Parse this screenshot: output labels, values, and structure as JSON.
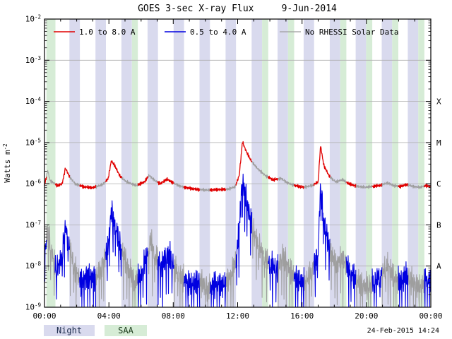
{
  "chart_data": {
    "type": "line",
    "title": "GOES 3-sec X-ray Flux     9-Jun-2014",
    "ylog": true,
    "ylim": [
      1e-09,
      0.01
    ],
    "xlim_hours": [
      0,
      24
    ],
    "x_tick_hours": [
      0,
      4,
      8,
      12,
      16,
      20,
      24
    ],
    "x_tick_labels": [
      "00:00",
      "04:00",
      "08:00",
      "12:00",
      "16:00",
      "20:00",
      "00:00"
    ],
    "y_tick_exponents": [
      -2,
      -3,
      -4,
      -5,
      -6,
      -7,
      -8,
      -9
    ],
    "goes_class_labels": [
      {
        "label": "X",
        "flux": 0.0001
      },
      {
        "label": "M",
        "flux": 1e-05
      },
      {
        "label": "C",
        "flux": 1e-06
      },
      {
        "label": "B",
        "flux": 1e-07
      },
      {
        "label": "A",
        "flux": 1e-08
      }
    ],
    "series": [
      {
        "name": "1.0 to 8.0 A",
        "color": "#e00000",
        "noise_decades": 0.05,
        "drop_spikes": false,
        "keypoints": [
          [
            0.0,
            9e-07
          ],
          [
            0.2,
            2.1e-06
          ],
          [
            0.35,
            1.2e-06
          ],
          [
            0.8,
            9e-07
          ],
          [
            1.1,
            1e-06
          ],
          [
            1.3,
            2.4e-06
          ],
          [
            1.55,
            1.5e-06
          ],
          [
            1.9,
            1e-06
          ],
          [
            2.4,
            8.5e-07
          ],
          [
            3.0,
            8e-07
          ],
          [
            3.6,
            9.5e-07
          ],
          [
            3.95,
            1.3e-06
          ],
          [
            4.15,
            3.6e-06
          ],
          [
            4.35,
            2.8e-06
          ],
          [
            4.7,
            1.5e-06
          ],
          [
            5.1,
            1.1e-06
          ],
          [
            5.7,
            9e-07
          ],
          [
            6.2,
            1.1e-06
          ],
          [
            6.5,
            1.6e-06
          ],
          [
            6.85,
            1.2e-06
          ],
          [
            7.2,
            1e-06
          ],
          [
            7.6,
            1.3e-06
          ],
          [
            8.0,
            1.05e-06
          ],
          [
            8.5,
            8.5e-07
          ],
          [
            9.0,
            7.8e-07
          ],
          [
            9.6,
            7.2e-07
          ],
          [
            10.2,
            7e-07
          ],
          [
            10.8,
            7.2e-07
          ],
          [
            11.4,
            7.3e-07
          ],
          [
            11.85,
            8.5e-07
          ],
          [
            12.1,
            1.6e-06
          ],
          [
            12.3,
            1.05e-05
          ],
          [
            12.5,
            6.5e-06
          ],
          [
            12.8,
            3.8e-06
          ],
          [
            13.2,
            2.4e-06
          ],
          [
            13.7,
            1.6e-06
          ],
          [
            14.2,
            1.25e-06
          ],
          [
            14.7,
            1.35e-06
          ],
          [
            15.1,
            1.05e-06
          ],
          [
            15.6,
            9e-07
          ],
          [
            16.1,
            8.2e-07
          ],
          [
            16.6,
            9e-07
          ],
          [
            17.0,
            1.1e-06
          ],
          [
            17.15,
            8.5e-06
          ],
          [
            17.35,
            2.8e-06
          ],
          [
            17.7,
            1.5e-06
          ],
          [
            18.1,
            1.1e-06
          ],
          [
            18.5,
            1.25e-06
          ],
          [
            18.9,
            1e-06
          ],
          [
            19.4,
            8.6e-07
          ],
          [
            19.9,
            8.2e-07
          ],
          [
            20.4,
            8.6e-07
          ],
          [
            20.9,
            9.2e-07
          ],
          [
            21.3,
            1.05e-06
          ],
          [
            21.7,
            9e-07
          ],
          [
            22.1,
            8.6e-07
          ],
          [
            22.5,
            9.6e-07
          ],
          [
            22.9,
            8.6e-07
          ],
          [
            23.3,
            8.2e-07
          ],
          [
            23.7,
            9e-07
          ],
          [
            24.0,
            8.6e-07
          ]
        ]
      },
      {
        "name": "0.5 to 4.0 A",
        "color": "#0000e0",
        "noise_decades": 0.4,
        "drop_spikes": true,
        "keypoints": [
          [
            0.0,
            2e-08
          ],
          [
            0.2,
            7e-08
          ],
          [
            0.45,
            2e-08
          ],
          [
            0.75,
            8e-09
          ],
          [
            1.05,
            1.5e-08
          ],
          [
            1.3,
            9e-08
          ],
          [
            1.55,
            3e-08
          ],
          [
            1.9,
            8e-09
          ],
          [
            2.3,
            4e-09
          ],
          [
            2.7,
            6e-09
          ],
          [
            3.1,
            5e-09
          ],
          [
            3.5,
            8e-09
          ],
          [
            3.95,
            3e-08
          ],
          [
            4.15,
            2.2e-07
          ],
          [
            4.4,
            9e-08
          ],
          [
            4.8,
            2.5e-08
          ],
          [
            5.2,
            9e-09
          ],
          [
            5.6,
            4e-09
          ],
          [
            6.0,
            6e-09
          ],
          [
            6.35,
            1.8e-08
          ],
          [
            6.6,
            4e-08
          ],
          [
            6.9,
            1.6e-08
          ],
          [
            7.3,
            1e-08
          ],
          [
            7.7,
            2e-08
          ],
          [
            8.1,
            9e-09
          ],
          [
            8.6,
            5e-09
          ],
          [
            9.1,
            3.5e-09
          ],
          [
            9.6,
            4.5e-09
          ],
          [
            10.1,
            3e-09
          ],
          [
            10.6,
            4e-09
          ],
          [
            11.1,
            3.5e-09
          ],
          [
            11.6,
            6e-09
          ],
          [
            11.9,
            1.6e-08
          ],
          [
            12.1,
            9e-08
          ],
          [
            12.3,
            1.3e-06
          ],
          [
            12.5,
            4.5e-07
          ],
          [
            12.8,
            1.4e-07
          ],
          [
            13.1,
            5e-08
          ],
          [
            13.5,
            2.2e-08
          ],
          [
            14.0,
            1.1e-08
          ],
          [
            14.5,
            8e-09
          ],
          [
            14.8,
            1.8e-08
          ],
          [
            15.2,
            8e-09
          ],
          [
            15.7,
            4.5e-09
          ],
          [
            16.2,
            4e-09
          ],
          [
            16.6,
            8e-09
          ],
          [
            17.0,
            2.2e-08
          ],
          [
            17.15,
            1e-06
          ],
          [
            17.35,
            1.3e-07
          ],
          [
            17.7,
            3e-08
          ],
          [
            18.1,
            1.1e-08
          ],
          [
            18.5,
            1.6e-08
          ],
          [
            18.9,
            8e-09
          ],
          [
            19.4,
            4.5e-09
          ],
          [
            19.9,
            3e-09
          ],
          [
            20.4,
            4e-09
          ],
          [
            20.9,
            6e-09
          ],
          [
            21.3,
            1.1e-08
          ],
          [
            21.7,
            5e-09
          ],
          [
            22.1,
            4e-09
          ],
          [
            22.5,
            6e-09
          ],
          [
            22.9,
            4e-09
          ],
          [
            23.3,
            3e-09
          ],
          [
            23.7,
            5e-09
          ],
          [
            24.0,
            4e-09
          ]
        ]
      }
    ],
    "no_data_series": {
      "name": "No RHESSI Solar Data",
      "color": "#9e9e9e"
    },
    "night_bands_hours": [
      [
        1.55,
        2.2
      ],
      [
        3.17,
        3.82
      ],
      [
        4.78,
        5.43
      ],
      [
        6.4,
        7.05
      ],
      [
        8.02,
        8.67
      ],
      [
        9.63,
        10.28
      ],
      [
        11.25,
        11.9
      ],
      [
        12.87,
        13.52
      ],
      [
        14.48,
        15.13
      ],
      [
        16.1,
        16.75
      ],
      [
        17.72,
        18.37
      ],
      [
        19.33,
        19.98
      ],
      [
        20.95,
        21.6
      ],
      [
        22.57,
        23.22
      ]
    ],
    "saa_bands_hours": [
      [
        0.12,
        0.68
      ],
      [
        5.43,
        5.8
      ],
      [
        13.52,
        13.9
      ],
      [
        15.13,
        15.51
      ],
      [
        18.37,
        18.75
      ],
      [
        19.98,
        20.36
      ],
      [
        21.6,
        21.98
      ],
      [
        23.22,
        23.6
      ]
    ]
  },
  "axes": {
    "y_title_base": "Watts m",
    "y_title_sup": "-2"
  },
  "footer": {
    "night_label": "Night",
    "saa_label": "SAA",
    "timestamp": "24-Feb-2015 14:24"
  },
  "colors": {
    "background": "#ffffff",
    "night": "#d9daee",
    "saa": "#d6ecd6",
    "grid": "#b0b0b0",
    "frame": "#000000"
  }
}
